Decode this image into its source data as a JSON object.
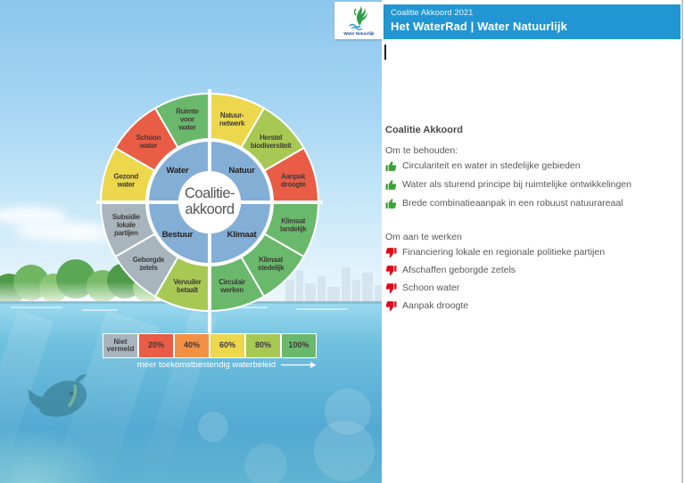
{
  "header": {
    "subtitle": "Coalitie Akkoord 2021",
    "title": "Het WaterRad  |  Water Natuurlijk",
    "logo_text": "Water Natuurlijk"
  },
  "wheel": {
    "center": [
      "Coalitie-",
      "akkoord"
    ],
    "quadrants": [
      {
        "label": "Water",
        "angle": 315
      },
      {
        "label": "Natuur",
        "angle": 45
      },
      {
        "label": "Klimaat",
        "angle": 135
      },
      {
        "label": "Bestuur",
        "angle": 225
      }
    ],
    "segments": [
      {
        "quadrant": "Natuur",
        "lines": [
          "Natuur-",
          "netwerk"
        ],
        "score": "60"
      },
      {
        "quadrant": "Natuur",
        "lines": [
          "Herstel",
          "biodiversiteit"
        ],
        "score": "80"
      },
      {
        "quadrant": "Natuur",
        "lines": [
          "Aanpak",
          "droogte"
        ],
        "score": "20"
      },
      {
        "quadrant": "Klimaat",
        "lines": [
          "Klimaat",
          "landelijk"
        ],
        "score": "100"
      },
      {
        "quadrant": "Klimaat",
        "lines": [
          "Klimaat",
          "stedelijk"
        ],
        "score": "100"
      },
      {
        "quadrant": "Klimaat",
        "lines": [
          "Circulair",
          "werken"
        ],
        "score": "100"
      },
      {
        "quadrant": "Bestuur",
        "lines": [
          "Vervuiler",
          "betaalt"
        ],
        "score": "80"
      },
      {
        "quadrant": "Bestuur",
        "lines": [
          "Geborgde",
          "zetels"
        ],
        "score": "niet_vermeld"
      },
      {
        "quadrant": "Bestuur",
        "lines": [
          "Subsidie",
          "lokale",
          "partijen"
        ],
        "score": "niet_vermeld"
      },
      {
        "quadrant": "Water",
        "lines": [
          "Gezond",
          "water"
        ],
        "score": "60"
      },
      {
        "quadrant": "Water",
        "lines": [
          "Schoon",
          "water"
        ],
        "score": "20"
      },
      {
        "quadrant": "Water",
        "lines": [
          "Ruimte",
          "voor",
          "water"
        ],
        "score": "100"
      }
    ]
  },
  "legend": {
    "items": [
      {
        "key": "niet_vermeld",
        "label": "Niet vermeld",
        "color": "#a9b5bc"
      },
      {
        "key": "20",
        "label": "20%",
        "color": "#e95c45"
      },
      {
        "key": "40",
        "label": "40%",
        "color": "#f29045"
      },
      {
        "key": "60",
        "label": "60%",
        "color": "#ecd74d"
      },
      {
        "key": "80",
        "label": "80%",
        "color": "#a8c854"
      },
      {
        "key": "100",
        "label": "100%",
        "color": "#6ab86b"
      }
    ],
    "caption": "meer toekomstbestendig waterbeleid"
  },
  "panel": {
    "heading": "Coalitie Akkoord",
    "keep": {
      "title": "Om te behouden:",
      "items": [
        "Circulariteit en water in stedelijke gebieden",
        "Water als sturend principe bij ruimtelijke ontwikkelingen",
        "Brede combinatieaanpak in een robuust natuurareaal"
      ]
    },
    "work": {
      "title": "Om aan te werken",
      "items": [
        "Financiering lokale en regionale politieke partijen",
        "Afschaffen geborgde zetels",
        "Schoon water",
        "Aanpak droogte"
      ]
    }
  },
  "colors": {
    "header_bar": "#2196d3",
    "inner_ring": "#83aed6",
    "center_text": "#55565a",
    "thumb_up": "#3aa135",
    "thumb_down": "#e30917"
  },
  "chart_data": {
    "type": "pie",
    "title": "Het WaterRad — Coalitie Akkoord",
    "legend_scale": [
      "Niet vermeld",
      "20%",
      "40%",
      "60%",
      "80%",
      "100%"
    ],
    "series": [
      {
        "name": "Water",
        "items": [
          {
            "label": "Ruimte voor water",
            "value": "100%"
          },
          {
            "label": "Schoon water",
            "value": "20%"
          },
          {
            "label": "Gezond water",
            "value": "60%"
          }
        ]
      },
      {
        "name": "Natuur",
        "items": [
          {
            "label": "Natuur-netwerk",
            "value": "60%"
          },
          {
            "label": "Herstel biodiversiteit",
            "value": "80%"
          },
          {
            "label": "Aanpak droogte",
            "value": "20%"
          }
        ]
      },
      {
        "name": "Klimaat",
        "items": [
          {
            "label": "Klimaat landelijk",
            "value": "100%"
          },
          {
            "label": "Klimaat stedelijk",
            "value": "100%"
          },
          {
            "label": "Circulair werken",
            "value": "100%"
          }
        ]
      },
      {
        "name": "Bestuur",
        "items": [
          {
            "label": "Vervuiler betaalt",
            "value": "80%"
          },
          {
            "label": "Geborgde zetels",
            "value": "Niet vermeld"
          },
          {
            "label": "Subsidie lokale partijen",
            "value": "Niet vermeld"
          }
        ]
      }
    ]
  }
}
